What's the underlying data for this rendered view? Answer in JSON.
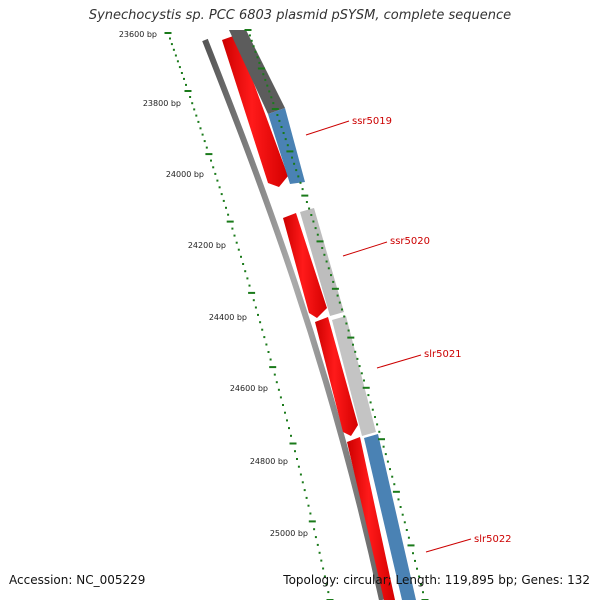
{
  "header": {
    "title": "Synechocystis sp. PCC 6803 plasmid pSYSM, complete sequence"
  },
  "footer": {
    "accession": "Accession: NC_005229",
    "summary": "Topology: circular; Length: 119,895 bp; Genes: 132"
  },
  "colors": {
    "cds_red": "#ff0000",
    "backbone_gray": "#777777",
    "hit_dark_gray": "#5a5a5a",
    "hit_light_gray": "#bdbdbd",
    "hit_blue": "#4a82b4",
    "tick_green": "#1a7a1a",
    "label_red": "#cc0000"
  },
  "ruler": {
    "ticks": [
      {
        "label": "23600 bp"
      },
      {
        "label": "23800 bp"
      },
      {
        "label": "24000 bp"
      },
      {
        "label": "24200 bp"
      },
      {
        "label": "24400 bp"
      },
      {
        "label": "24600 bp"
      },
      {
        "label": "24800 bp"
      },
      {
        "label": "25000 bp"
      }
    ]
  },
  "genes": [
    {
      "name": "ssr5019"
    },
    {
      "name": "ssr5020"
    },
    {
      "name": "slr5021"
    },
    {
      "name": "slr5022"
    }
  ]
}
